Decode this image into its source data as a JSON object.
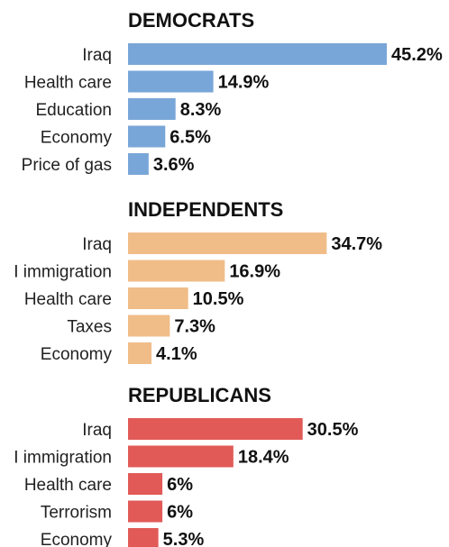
{
  "chart_data": [
    {
      "type": "bar",
      "orientation": "horizontal",
      "title": "DEMOCRATS",
      "color": "#79a6d8",
      "categories": [
        "Iraq",
        "Health care",
        "Education",
        "Economy",
        "Price of gas"
      ],
      "values": [
        45.2,
        14.9,
        8.3,
        6.5,
        3.6
      ],
      "value_labels": [
        "45.2%",
        "14.9%",
        "8.3%",
        "6.5%",
        "3.6%"
      ],
      "unit": "%"
    },
    {
      "type": "bar",
      "orientation": "horizontal",
      "title": "INDEPENDENTS",
      "color": "#f0bd88",
      "categories": [
        "Iraq",
        "I immigration",
        "Health care",
        "Taxes",
        "Economy"
      ],
      "values": [
        34.7,
        16.9,
        10.5,
        7.3,
        4.1
      ],
      "value_labels": [
        "34.7%",
        "16.9%",
        "10.5%",
        "7.3%",
        "4.1%"
      ],
      "unit": "%"
    },
    {
      "type": "bar",
      "orientation": "horizontal",
      "title": "REPUBLICANS",
      "color": "#e15a57",
      "categories": [
        "Iraq",
        "I immigration",
        "Health care",
        "Terrorism",
        "Economy"
      ],
      "values": [
        30.5,
        18.4,
        6,
        6,
        5.3
      ],
      "value_labels": [
        "30.5%",
        "18.4%",
        "6%",
        "6%",
        "5.3%"
      ],
      "unit": "%"
    }
  ]
}
